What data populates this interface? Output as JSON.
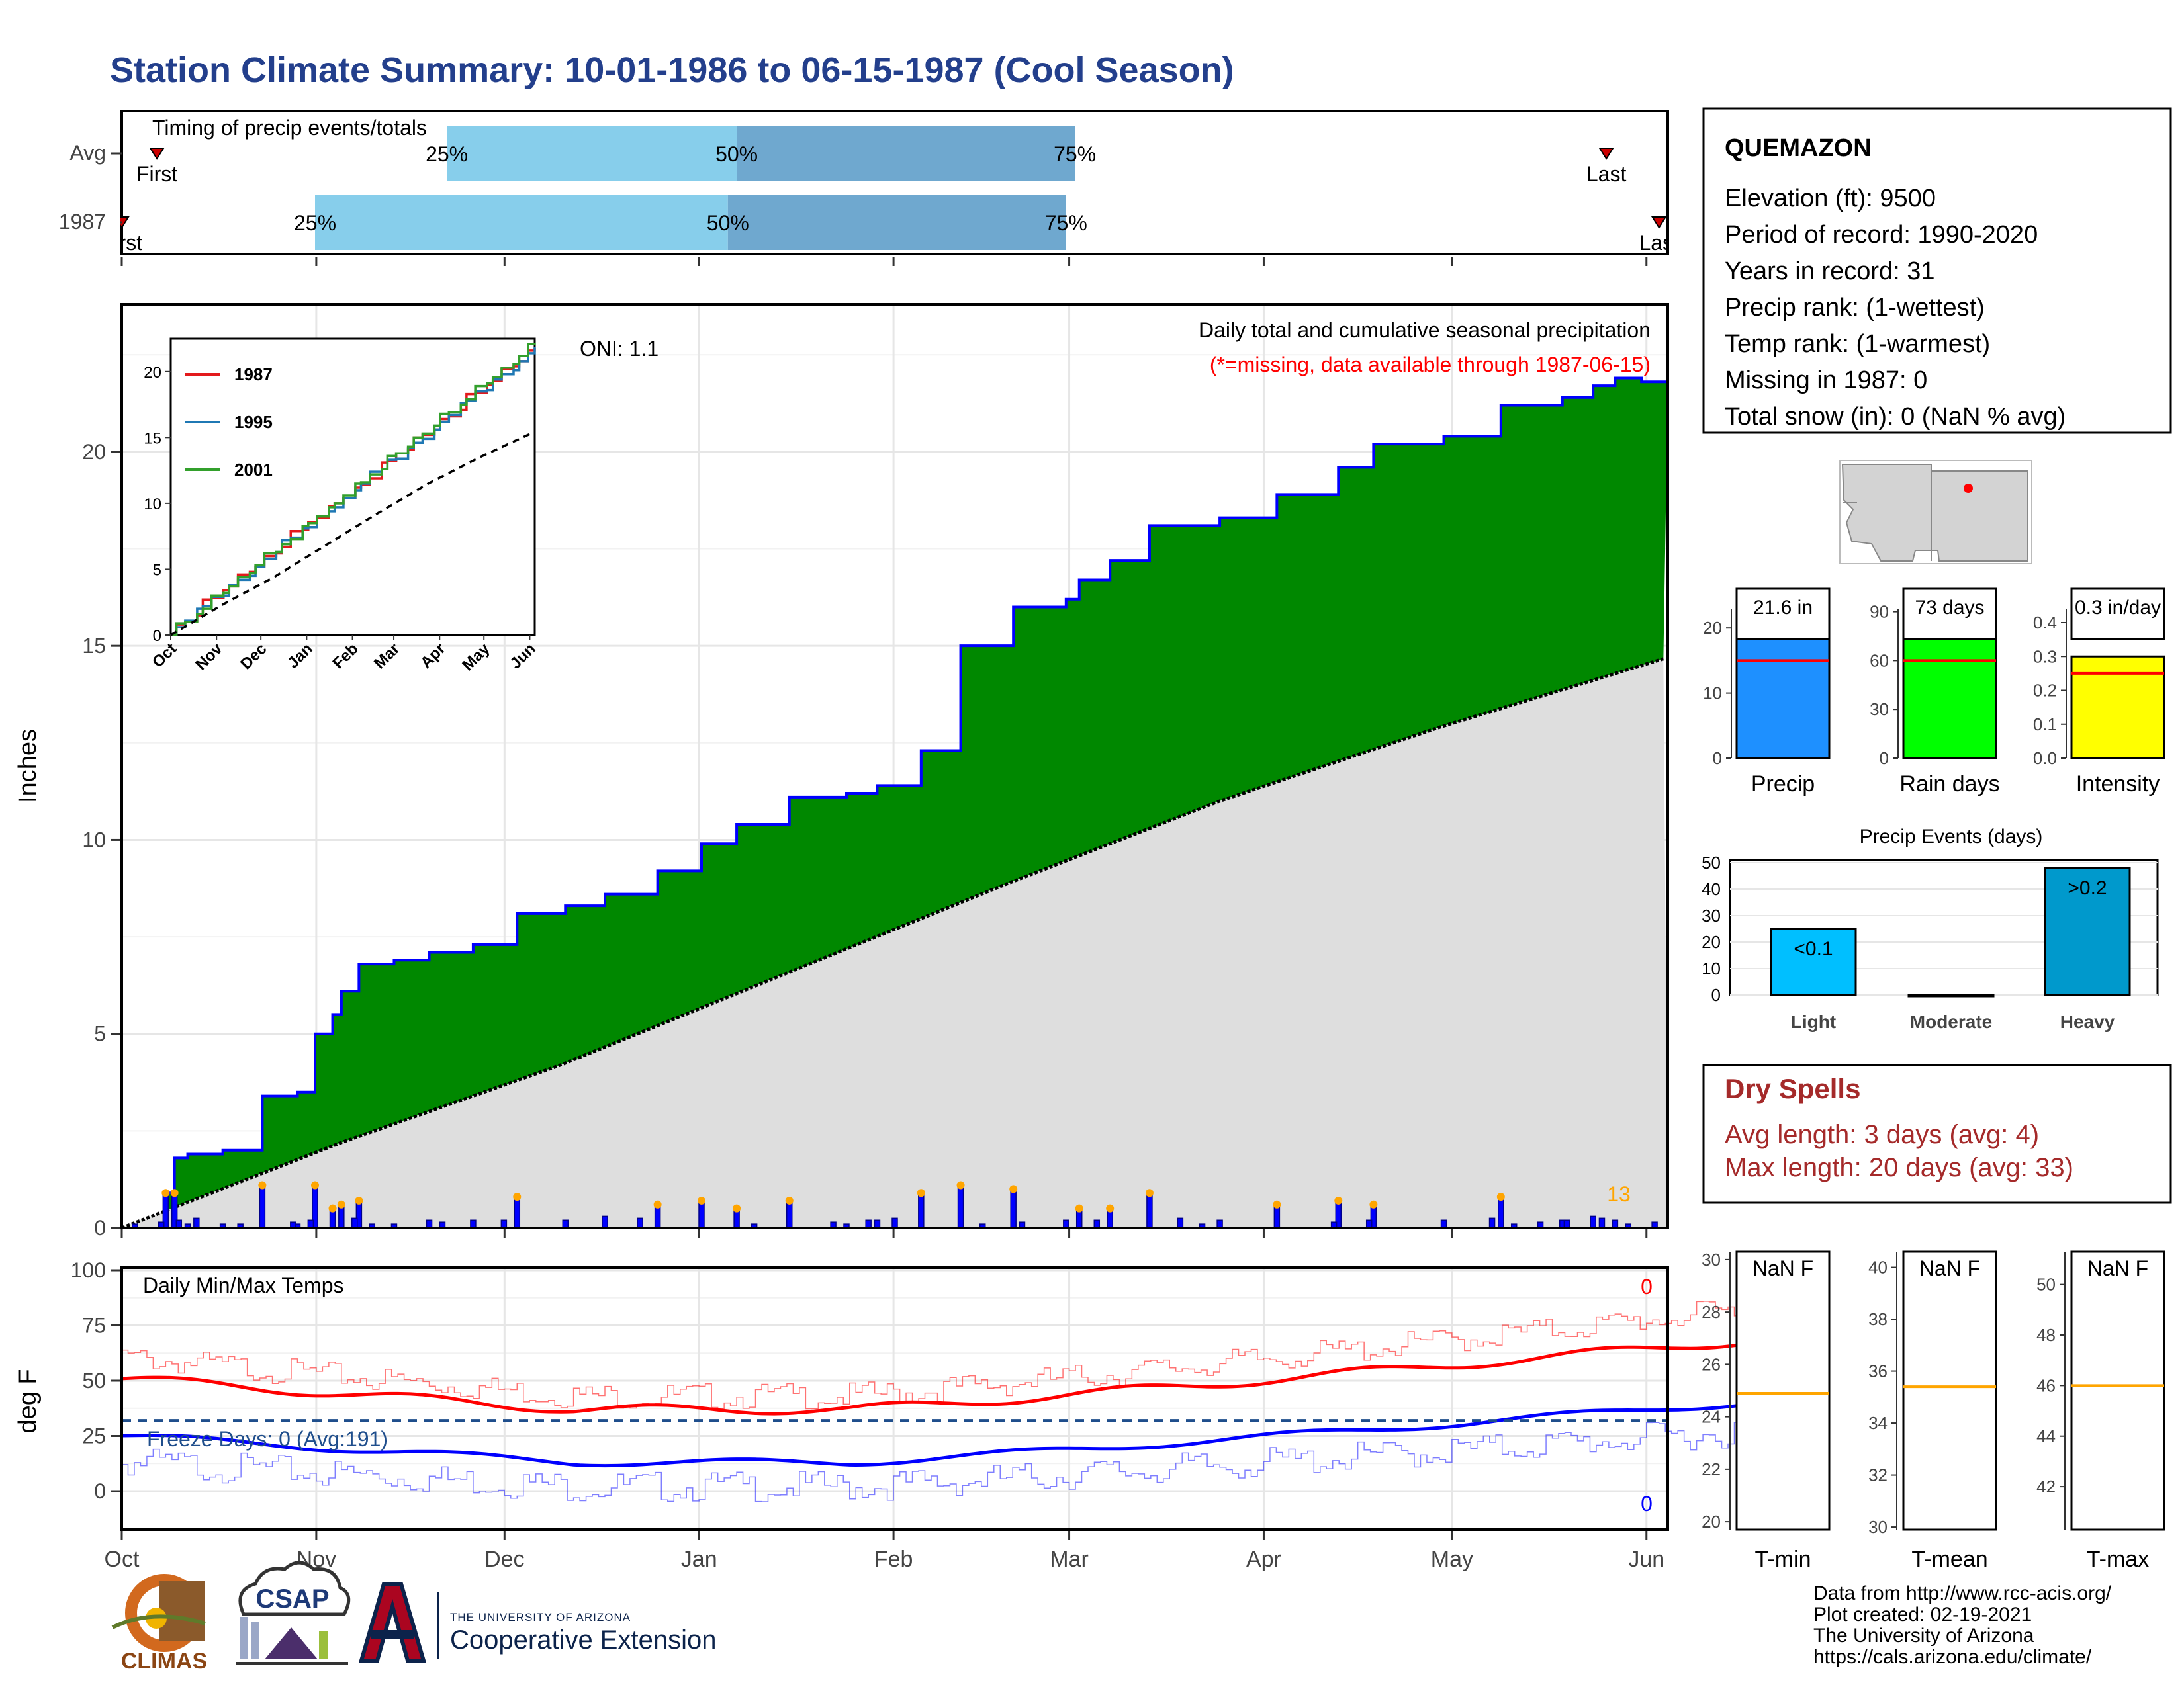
{
  "title": "Station Climate Summary: 10-01-1986 to 06-15-1987 (Cool Season)",
  "colors": {
    "title": "#233f8c",
    "precip_fill": "#008800",
    "avg_fill": "#dedede",
    "bar_blue": "#0000ff",
    "bar_edge": "#00008b",
    "marker": "#ffa500",
    "tmax": "#ff0000",
    "tmin": "#0000ff",
    "freeze_line": "#1f4e8c",
    "dry": "#a52a2a",
    "pct_light": "#87ceeb",
    "pct_dark": "#6fa8cf",
    "inset_1987": "#e31a1c",
    "inset_1995": "#1f78b4",
    "inset_2001": "#33a02c",
    "panel_precip": "#1e90ff",
    "panel_raindays": "#00ff00",
    "panel_intensity": "#ffff00",
    "events_light": "#00bfff",
    "events_heavy": "#0099cc"
  },
  "timing_panel": {
    "label": "Timing of precip events/totals",
    "rows": [
      {
        "name": "Avg",
        "first_label": "First",
        "last_label": "Last",
        "first": 0.8,
        "last": 33.8,
        "p25": 7.4,
        "p50": 14.0,
        "p75": 21.7,
        "pct_labels": [
          "25%",
          "50%",
          "75%"
        ]
      },
      {
        "name": "1987",
        "first_label": "First",
        "last_label": "Last",
        "first": 0.0,
        "last": 35.0,
        "p25": 4.4,
        "p50": 13.8,
        "p75": 21.5,
        "pct_labels": [
          "25%",
          "50%",
          "75%"
        ]
      }
    ]
  },
  "precip_panel": {
    "ylabel": "Inches",
    "oni": "ONI: 1.1",
    "note_title": "Daily total and cumulative seasonal precipitation",
    "note_missing": "(*=missing, data available through 1987-06-15)",
    "yticks": [
      "0",
      "5",
      "10",
      "15",
      "20"
    ],
    "marker_count_label": "13"
  },
  "inset": {
    "legend": [
      "1987",
      "1995",
      "2001"
    ],
    "yticks": [
      "0",
      "5",
      "10",
      "15",
      "20"
    ],
    "xticks": [
      "Oct",
      "Nov",
      "Dec",
      "Jan",
      "Feb",
      "Mar",
      "Apr",
      "May",
      "Jun"
    ]
  },
  "temp_panel": {
    "label": "Daily Min/Max Temps",
    "ylabel": "deg F",
    "freeze_label": "Freeze Days: 0 (Avg:191)",
    "tmax_missing": "0",
    "tmin_missing": "0",
    "yticks": [
      "0",
      "25",
      "50",
      "75",
      "100"
    ],
    "freeze_value": 32
  },
  "x_axis": {
    "months": [
      "Oct",
      "Nov",
      "Dec",
      "Jan",
      "Feb",
      "Mar",
      "Apr",
      "May",
      "Jun"
    ]
  },
  "station_box": {
    "name": "QUEMAZON",
    "lines": [
      "Elevation (ft): 9500",
      "Period of record: 1990-2020",
      "Years in record: 31",
      "Precip rank:  (1-wettest)",
      "Temp rank:  (1-warmest)",
      "Missing in 1987: 0",
      "Total snow (in): 0 (NaN % avg)"
    ]
  },
  "summary_panels": [
    {
      "name": "Precip",
      "value_label": "21.6 in",
      "value": 21.6,
      "avg": 15.0,
      "ymax": 25,
      "yticks": [
        "0",
        "10",
        "20"
      ],
      "tick_values": [
        0,
        10,
        20
      ]
    },
    {
      "name": "Rain days",
      "value_label": "73 days",
      "value": 73,
      "avg": 60,
      "ymax": 100,
      "yticks": [
        "0",
        "30",
        "60",
        "90"
      ],
      "tick_values": [
        0,
        30,
        60,
        90
      ]
    },
    {
      "name": "Intensity",
      "value_label": "0.3 in/day",
      "value": 0.3,
      "avg": 0.25,
      "ymax": 0.48,
      "yticks": [
        "0.0",
        "0.1",
        "0.2",
        "0.3",
        "0.4"
      ],
      "tick_values": [
        0,
        0.1,
        0.2,
        0.3,
        0.4
      ]
    }
  ],
  "events_panel": {
    "title": "Precip Events (days)",
    "categories": [
      "Light",
      "Moderate",
      "Heavy"
    ],
    "values": [
      25,
      0,
      48
    ],
    "bar_labels": [
      "<0.1",
      "",
      ">0.2"
    ],
    "yticks": [
      "0",
      "10",
      "20",
      "30",
      "40",
      "50"
    ]
  },
  "dry_spells": {
    "title": "Dry Spells",
    "avg_line": "Avg length: 3 days (avg: 4)",
    "max_line": "Max length: 20 days (avg: 33)"
  },
  "temp_summary_panels": [
    {
      "name": "T-min",
      "value_label": "NaN F",
      "yticks": [
        "20",
        "22",
        "24",
        "26",
        "28",
        "30"
      ],
      "tick_values": [
        20,
        22,
        24,
        26,
        28,
        30
      ],
      "ymin": 19.7,
      "ymax": 30.3,
      "avg": 24.9
    },
    {
      "name": "T-mean",
      "value_label": "NaN F",
      "yticks": [
        "30",
        "32",
        "34",
        "36",
        "38",
        "40"
      ],
      "tick_values": [
        30,
        32,
        34,
        36,
        38,
        40
      ],
      "ymin": 29.9,
      "ymax": 40.6,
      "avg": 35.4
    },
    {
      "name": "T-max",
      "value_label": "NaN F",
      "yticks": [
        "42",
        "44",
        "46",
        "48",
        "50"
      ],
      "tick_values": [
        42,
        44,
        46,
        48,
        50
      ],
      "ymin": 40.3,
      "ymax": 51.3,
      "avg": 46.0
    }
  ],
  "credits": {
    "lines": [
      "Data from http://www.rcc-acis.org/",
      "Plot created: 02-19-2021",
      "The University of Arizona",
      "https://cals.arizona.edu/climate/"
    ],
    "logo_climas": "CLIMAS",
    "logo_csap": "CSAP",
    "ua_small": "THE UNIVERSITY OF ARIZONA",
    "ua_big": "Cooperative Extension"
  },
  "chart_data": {
    "type": "area",
    "title": "Daily total and cumulative seasonal precipitation",
    "ylabel": "Inches",
    "ylim": [
      0,
      23.8
    ],
    "x_units": "weeks since Oct 1",
    "series": [
      {
        "name": "1987",
        "x": [
          0,
          1,
          1.2,
          1.5,
          2.3,
          3.2,
          4,
          4.4,
          4.8,
          5,
          5.4,
          6.2,
          7,
          8,
          9,
          10.1,
          11,
          12.2,
          13.2,
          14,
          15.2,
          16.5,
          17.2,
          18.2,
          19.1,
          20.3,
          21.5,
          21.8,
          22.5,
          23.4,
          25,
          26.3,
          27.7,
          28.5,
          30.1,
          31.4,
          32.8,
          33.5,
          34,
          34.6,
          35.2
        ],
        "values": [
          0,
          0.9,
          1.8,
          1.9,
          2.0,
          3.4,
          3.5,
          5.0,
          5.5,
          6.1,
          6.8,
          6.9,
          7.1,
          7.3,
          8.1,
          8.3,
          8.6,
          9.2,
          9.9,
          10.4,
          11.1,
          11.2,
          11.4,
          12.3,
          15.0,
          16.0,
          16.2,
          16.7,
          17.2,
          18.1,
          18.3,
          18.9,
          19.6,
          20.2,
          20.4,
          21.2,
          21.4,
          21.7,
          21.9,
          21.8,
          21.6
        ]
      },
      {
        "name": "",
        "x": [
          0,
          5,
          10,
          15,
          20,
          25,
          30,
          35.2
        ],
        "values": [
          0,
          2.2,
          4.2,
          6.5,
          8.8,
          11.0,
          12.9,
          14.7
        ]
      }
    ]
  }
}
